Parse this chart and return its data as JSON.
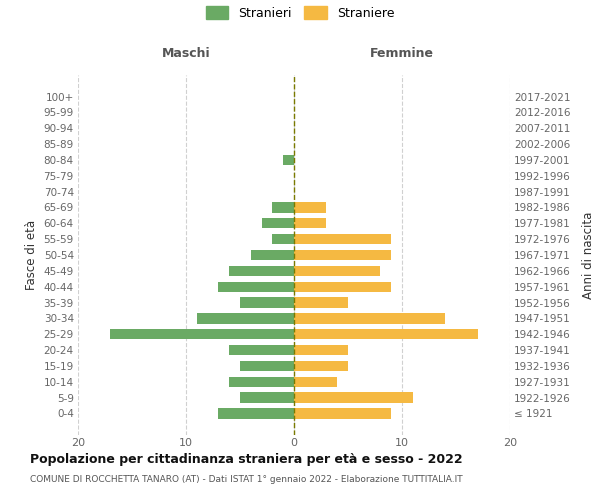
{
  "age_groups": [
    "100+",
    "95-99",
    "90-94",
    "85-89",
    "80-84",
    "75-79",
    "70-74",
    "65-69",
    "60-64",
    "55-59",
    "50-54",
    "45-49",
    "40-44",
    "35-39",
    "30-34",
    "25-29",
    "20-24",
    "15-19",
    "10-14",
    "5-9",
    "0-4"
  ],
  "birth_years": [
    "≤ 1921",
    "1922-1926",
    "1927-1931",
    "1932-1936",
    "1937-1941",
    "1942-1946",
    "1947-1951",
    "1952-1956",
    "1957-1961",
    "1962-1966",
    "1967-1971",
    "1972-1976",
    "1977-1981",
    "1982-1986",
    "1987-1991",
    "1992-1996",
    "1997-2001",
    "2002-2006",
    "2007-2011",
    "2012-2016",
    "2017-2021"
  ],
  "males": [
    0,
    0,
    0,
    0,
    1,
    0,
    0,
    2,
    3,
    2,
    4,
    6,
    7,
    5,
    9,
    17,
    6,
    5,
    6,
    5,
    7
  ],
  "females": [
    0,
    0,
    0,
    0,
    0,
    0,
    0,
    3,
    3,
    9,
    9,
    8,
    9,
    5,
    14,
    17,
    5,
    5,
    4,
    11,
    9
  ],
  "male_color": "#6aaa64",
  "female_color": "#f5b942",
  "title": "Popolazione per cittadinanza straniera per età e sesso - 2022",
  "subtitle": "COMUNE DI ROCCHETTA TANARO (AT) - Dati ISTAT 1° gennaio 2022 - Elaborazione TUTTITALIA.IT",
  "xlabel_left": "Maschi",
  "xlabel_right": "Femmine",
  "ylabel_left": "Fasce di età",
  "ylabel_right": "Anni di nascita",
  "legend_male": "Stranieri",
  "legend_female": "Straniere",
  "xlim": 20,
  "background_color": "#ffffff",
  "grid_color": "#d0d0d0"
}
